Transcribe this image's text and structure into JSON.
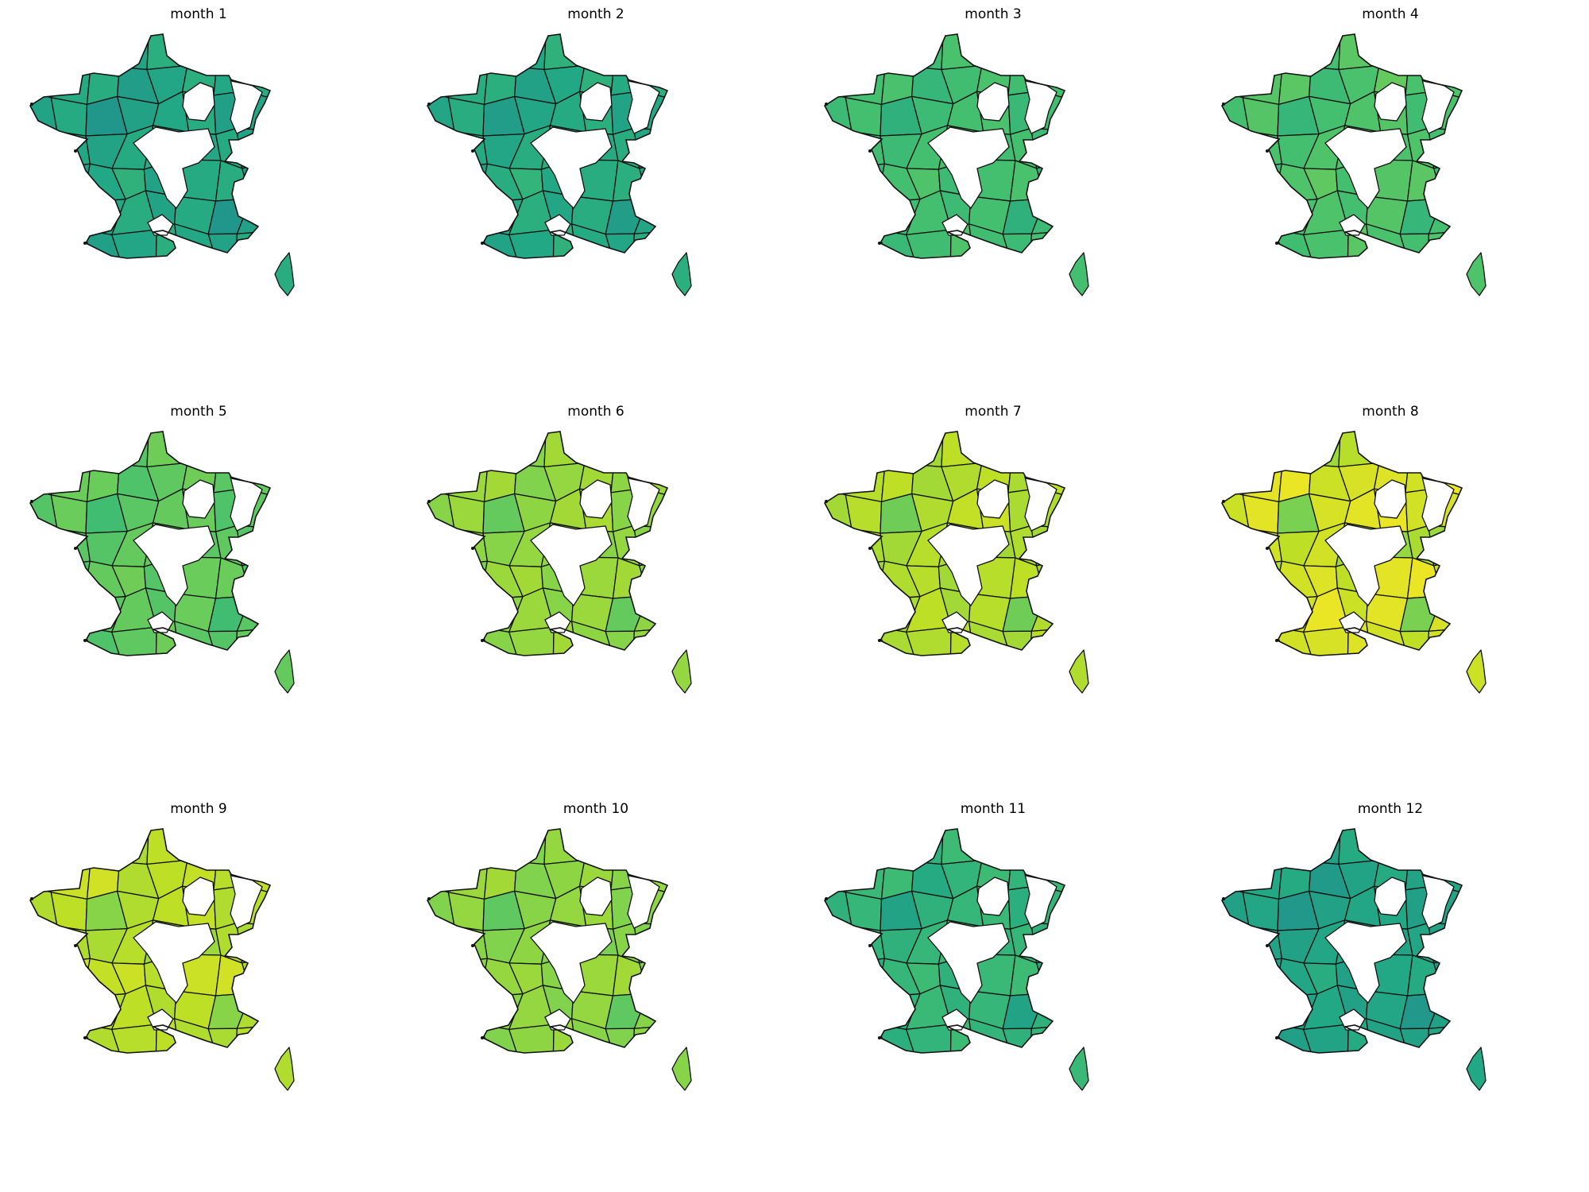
{
  "colormap": "viridis",
  "chart_data": [
    {
      "type": "choropleth",
      "title": "month 1",
      "value": 0.62,
      "values": [
        0.62,
        0.6,
        0.61,
        0.58,
        0.63,
        0.55,
        0.6,
        0.64,
        0.58,
        0.61,
        0.62,
        0.55,
        0.59,
        0.63,
        0.6,
        0.62,
        0.58,
        0.61,
        0.52,
        0.57,
        0.6,
        0.62,
        0.56,
        0.59,
        0.63,
        0.6,
        0.58,
        0.61
      ]
    },
    {
      "type": "choropleth",
      "title": "month 2",
      "value": 0.63,
      "values": [
        0.63,
        0.61,
        0.62,
        0.6,
        0.64,
        0.57,
        0.62,
        0.65,
        0.6,
        0.62,
        0.63,
        0.57,
        0.6,
        0.64,
        0.61,
        0.63,
        0.59,
        0.62,
        0.55,
        0.59,
        0.61,
        0.63,
        0.58,
        0.6,
        0.64,
        0.61,
        0.59,
        0.62
      ]
    },
    {
      "type": "choropleth",
      "title": "month 3",
      "value": 0.7,
      "values": [
        0.7,
        0.69,
        0.7,
        0.68,
        0.71,
        0.66,
        0.7,
        0.72,
        0.68,
        0.7,
        0.71,
        0.66,
        0.69,
        0.71,
        0.69,
        0.7,
        0.68,
        0.7,
        0.64,
        0.68,
        0.7,
        0.71,
        0.67,
        0.69,
        0.72,
        0.69,
        0.68,
        0.7
      ]
    },
    {
      "type": "choropleth",
      "title": "month 4",
      "value": 0.72,
      "values": [
        0.72,
        0.71,
        0.72,
        0.7,
        0.74,
        0.68,
        0.72,
        0.75,
        0.7,
        0.73,
        0.74,
        0.68,
        0.71,
        0.76,
        0.71,
        0.72,
        0.7,
        0.73,
        0.66,
        0.7,
        0.72,
        0.73,
        0.69,
        0.71,
        0.74,
        0.71,
        0.7,
        0.72
      ]
    },
    {
      "type": "choropleth",
      "title": "month 5",
      "value": 0.76,
      "values": [
        0.76,
        0.74,
        0.75,
        0.73,
        0.78,
        0.71,
        0.76,
        0.78,
        0.73,
        0.77,
        0.77,
        0.72,
        0.75,
        0.78,
        0.74,
        0.76,
        0.73,
        0.77,
        0.69,
        0.74,
        0.76,
        0.77,
        0.72,
        0.75,
        0.78,
        0.74,
        0.73,
        0.76
      ]
    },
    {
      "type": "choropleth",
      "title": "month 6",
      "value": 0.84,
      "values": [
        0.84,
        0.82,
        0.84,
        0.82,
        0.86,
        0.8,
        0.85,
        0.86,
        0.82,
        0.85,
        0.86,
        0.81,
        0.84,
        0.86,
        0.83,
        0.85,
        0.82,
        0.85,
        0.76,
        0.83,
        0.86,
        0.87,
        0.82,
        0.84,
        0.86,
        0.83,
        0.82,
        0.84
      ]
    },
    {
      "type": "choropleth",
      "title": "month 7",
      "value": 0.88,
      "values": [
        0.88,
        0.86,
        0.88,
        0.86,
        0.9,
        0.85,
        0.88,
        0.89,
        0.86,
        0.89,
        0.9,
        0.86,
        0.88,
        0.9,
        0.87,
        0.9,
        0.86,
        0.89,
        0.78,
        0.88,
        0.91,
        0.92,
        0.87,
        0.88,
        0.89,
        0.87,
        0.86,
        0.89
      ]
    },
    {
      "type": "choropleth",
      "title": "month 8",
      "value": 0.92,
      "values": [
        0.86,
        0.84,
        0.87,
        0.85,
        0.89,
        0.88,
        0.93,
        0.95,
        0.9,
        0.96,
        0.97,
        0.92,
        0.94,
        0.95,
        0.93,
        0.97,
        0.92,
        0.96,
        0.8,
        0.94,
        0.96,
        0.97,
        0.93,
        0.94,
        0.95,
        0.93,
        0.9,
        0.93
      ]
    },
    {
      "type": "choropleth",
      "title": "month 9",
      "value": 0.88,
      "values": [
        0.86,
        0.85,
        0.88,
        0.87,
        0.9,
        0.92,
        0.91,
        0.92,
        0.89,
        0.92,
        0.93,
        0.88,
        0.9,
        0.91,
        0.89,
        0.9,
        0.88,
        0.9,
        0.82,
        0.88,
        0.9,
        0.91,
        0.88,
        0.89,
        0.9,
        0.88,
        0.87,
        0.89
      ]
    },
    {
      "type": "choropleth",
      "title": "month 10",
      "value": 0.82,
      "values": [
        0.82,
        0.8,
        0.82,
        0.81,
        0.84,
        0.83,
        0.84,
        0.85,
        0.82,
        0.85,
        0.86,
        0.81,
        0.83,
        0.85,
        0.82,
        0.84,
        0.81,
        0.84,
        0.75,
        0.82,
        0.84,
        0.85,
        0.81,
        0.83,
        0.85,
        0.82,
        0.81,
        0.83
      ]
    },
    {
      "type": "choropleth",
      "title": "month 11",
      "value": 0.67,
      "values": [
        0.67,
        0.65,
        0.66,
        0.64,
        0.68,
        0.63,
        0.66,
        0.68,
        0.64,
        0.67,
        0.68,
        0.61,
        0.65,
        0.68,
        0.65,
        0.67,
        0.64,
        0.66,
        0.58,
        0.64,
        0.66,
        0.67,
        0.63,
        0.65,
        0.68,
        0.65,
        0.64,
        0.66
      ]
    },
    {
      "type": "choropleth",
      "title": "month 12",
      "value": 0.6,
      "values": [
        0.6,
        0.58,
        0.59,
        0.57,
        0.61,
        0.56,
        0.59,
        0.62,
        0.57,
        0.6,
        0.61,
        0.54,
        0.58,
        0.61,
        0.58,
        0.6,
        0.57,
        0.59,
        0.53,
        0.57,
        0.59,
        0.6,
        0.56,
        0.58,
        0.61,
        0.58,
        0.57,
        0.59
      ]
    }
  ]
}
